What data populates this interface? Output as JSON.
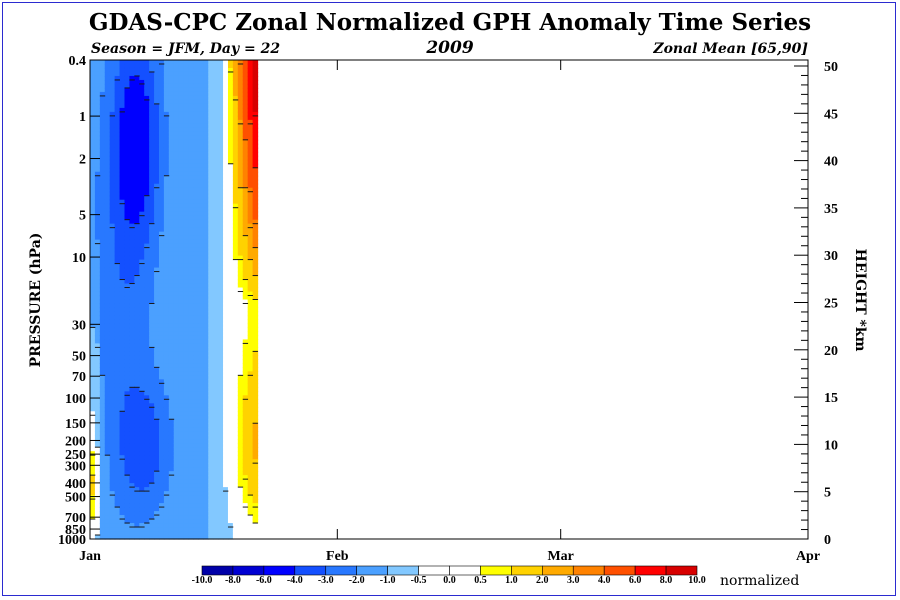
{
  "chart_data": {
    "type": "heatmap",
    "title": "GDAS-CPC Zonal Normalized GPH Anomaly Time Series",
    "subtitle_left": "Season = JFM, Day =  22",
    "subtitle_center": "2009",
    "subtitle_right": "Zonal Mean [65,90]",
    "ylabel_left": "PRESSURE (hPa)",
    "ylabel_right": "HEIGHT *km",
    "x_ticks": [
      "Jan",
      "Feb",
      "Mar",
      "Apr"
    ],
    "x_tick_days": [
      1,
      32,
      60,
      91
    ],
    "data_days": [
      1,
      22
    ],
    "pressure_ticks": [
      0.4,
      1,
      2,
      5,
      10,
      30,
      50,
      70,
      100,
      150,
      200,
      250,
      300,
      400,
      500,
      700,
      850,
      1000
    ],
    "pressure_tick_labels": [
      "0.4",
      "1",
      "2",
      "5",
      "10",
      "30",
      "50",
      "70",
      "100",
      "150",
      "200",
      "250",
      "300",
      "400",
      "500",
      "700",
      "850",
      "1000"
    ],
    "height_ticks": [
      0,
      5,
      10,
      15,
      20,
      25,
      30,
      35,
      40,
      45,
      50
    ],
    "height_tick_labels": [
      "0",
      "5",
      "10",
      "15",
      "20",
      "25",
      "30",
      "35",
      "40",
      "45",
      "50"
    ],
    "colorbar_label": "normalized",
    "colorbar_levels": [
      "-10.0",
      "-8.0",
      "-6.0",
      "-4.0",
      "-3.0",
      "-2.0",
      "-1.0",
      "-0.5",
      "0.0",
      "0.5",
      "1.0",
      "2.0",
      "3.0",
      "4.0",
      "6.0",
      "8.0",
      "10.0"
    ],
    "colorbar_colors": [
      "#0000a8",
      "#0000d2",
      "#0000ff",
      "#1450ff",
      "#2878ff",
      "#4ba0ff",
      "#82c8ff",
      "#ffffff",
      "#ffffff",
      "#ffff00",
      "#ffd200",
      "#ffaa00",
      "#ff8200",
      "#ff5000",
      "#ff0000",
      "#d70000"
    ]
  }
}
